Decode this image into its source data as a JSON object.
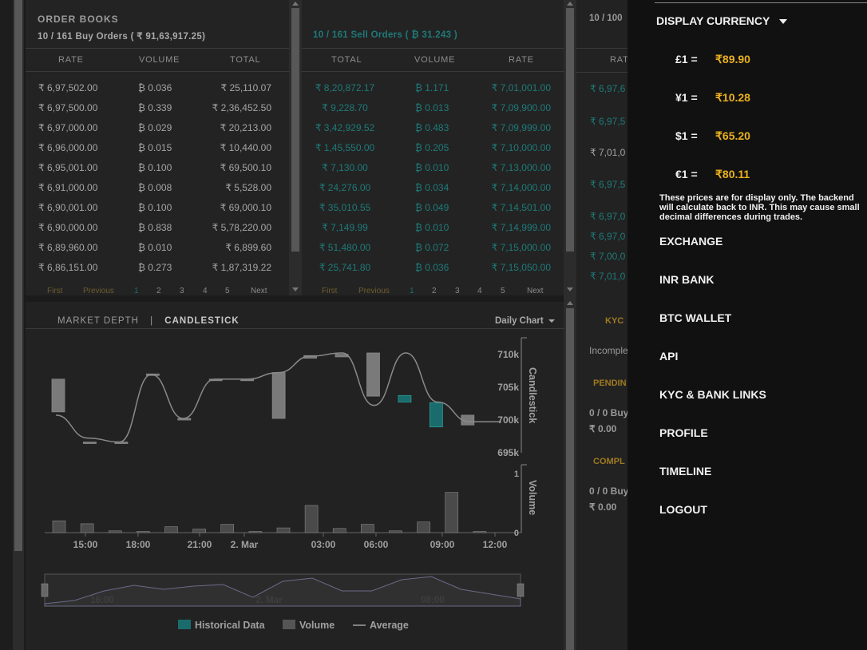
{
  "order_books": {
    "title": "ORDER BOOKS",
    "buy_summary": "10 / 161 Buy Orders ( ₹ 91,63,917.25)",
    "sell_summary": "10 / 161 Sell Orders ( ₿ 31.243 )",
    "buy_headers": [
      "RATE",
      "VOLUME",
      "TOTAL"
    ],
    "sell_headers": [
      "TOTAL",
      "VOLUME",
      "RATE"
    ],
    "buy_rows": [
      [
        "₹ 6,97,502.00",
        "₿ 0.036",
        "₹ 25,110.07"
      ],
      [
        "₹ 6,97,500.00",
        "₿ 0.339",
        "₹ 2,36,452.50"
      ],
      [
        "₹ 6,97,000.00",
        "₿ 0.029",
        "₹ 20,213.00"
      ],
      [
        "₹ 6,96,000.00",
        "₿ 0.015",
        "₹ 10,440.00"
      ],
      [
        "₹ 6,95,001.00",
        "₿ 0.100",
        "₹ 69,500.10"
      ],
      [
        "₹ 6,91,000.00",
        "₿ 0.008",
        "₹ 5,528.00"
      ],
      [
        "₹ 6,90,001.00",
        "₿ 0.100",
        "₹ 69,000.10"
      ],
      [
        "₹ 6,90,000.00",
        "₿ 0.838",
        "₹ 5,78,220.00"
      ],
      [
        "₹ 6,89,960.00",
        "₿ 0.010",
        "₹ 6,899.60"
      ],
      [
        "₹ 6,86,151.00",
        "₿ 0.273",
        "₹ 1,87,319.22"
      ]
    ],
    "sell_rows": [
      [
        "₹ 8,20,872.17",
        "₿ 1.171",
        "₹ 7,01,001.00"
      ],
      [
        "₹ 9,228.70",
        "₿ 0.013",
        "₹ 7,09,900.00"
      ],
      [
        "₹ 3,42,929.52",
        "₿ 0.483",
        "₹ 7,09,999.00"
      ],
      [
        "₹ 1,45,550.00",
        "₿ 0.205",
        "₹ 7,10,000.00"
      ],
      [
        "₹ 7,130.00",
        "₿ 0.010",
        "₹ 7,13,000.00"
      ],
      [
        "₹ 24,276.00",
        "₿ 0.034",
        "₹ 7,14,000.00"
      ],
      [
        "₹ 35,010.55",
        "₿ 0.049",
        "₹ 7,14,501.00"
      ],
      [
        "₹ 7,149.99",
        "₿ 0.010",
        "₹ 7,14,999.00"
      ],
      [
        "₹ 51,480.00",
        "₿ 0.072",
        "₹ 7,15,000.00"
      ],
      [
        "₹ 25,741.80",
        "₿ 0.036",
        "₹ 7,15,050.00"
      ]
    ],
    "pager": {
      "first": "First",
      "previous": "Previous",
      "pages": [
        "1",
        "2",
        "3",
        "4",
        "5"
      ],
      "next": "Next"
    }
  },
  "chart_header": {
    "market_depth": "MARKET DEPTH",
    "separator": "|",
    "candlestick": "CANDLESTICK",
    "daily_chart": "Daily Chart"
  },
  "chart_data": {
    "type": "candlestick",
    "price_axis_label": "Candlestick",
    "volume_axis_label": "Volume",
    "price_ticks": [
      "695k",
      "700k",
      "705k",
      "710k"
    ],
    "price_ylim": [
      695000,
      710000
    ],
    "volume_ticks": [
      "0",
      "1"
    ],
    "volume_ylim": [
      0,
      1.0
    ],
    "x_ticks": [
      "15:00",
      "18:00",
      "21:00",
      "2. Mar",
      "03:00",
      "06:00",
      "09:00",
      "12:00"
    ],
    "navigator_labels": [
      "16:00",
      "2. Mar",
      "08:00"
    ],
    "candles": [
      {
        "o": 701000,
        "c": 706000,
        "up": false
      },
      {
        "o": 696400,
        "c": 696400,
        "up": false
      },
      {
        "o": 696400,
        "c": 696400,
        "up": false
      },
      {
        "o": 706800,
        "c": 706800,
        "up": false
      },
      {
        "o": 700000,
        "c": 700000,
        "up": false
      },
      {
        "o": 706000,
        "c": 706000,
        "up": false
      },
      {
        "o": 706000,
        "c": 706000,
        "up": false
      },
      {
        "o": 700000,
        "c": 707000,
        "up": false
      },
      {
        "o": 709200,
        "c": 709600,
        "up": false
      },
      {
        "o": 709400,
        "c": 709800,
        "up": false
      },
      {
        "o": 703400,
        "c": 710000,
        "up": false
      },
      {
        "o": 702500,
        "c": 703500,
        "up": true
      },
      {
        "o": 698700,
        "c": 702400,
        "up": true
      },
      {
        "o": 699000,
        "c": 700500,
        "up": false
      }
    ],
    "average": [
      700500,
      697000,
      696400,
      706700,
      700000,
      706000,
      706000,
      707000,
      709500,
      710000,
      702000,
      710000,
      702500,
      699500,
      699500
    ],
    "volumes": [
      0.2,
      0.15,
      0.03,
      0.02,
      0.1,
      0.06,
      0.14,
      0.02,
      0.08,
      0.46,
      0.07,
      0.14,
      0.03,
      0.18,
      0.68,
      0.02
    ],
    "legend": [
      "Historical Data",
      "Volume",
      "Average"
    ]
  },
  "right_panel": {
    "summary": "10 / 100",
    "rate_header": "RAT",
    "rates": [
      "₹ 6,97,6",
      "₹ 6,97,5",
      "₹ 7,01,0",
      "₹ 6,97,5",
      "₹ 6,97,0",
      "₹ 6,97,0",
      "₹ 7,00,0",
      "₹ 7,01,0"
    ],
    "kyc": "KYC",
    "kyc_status": "Incomple",
    "pending": "PENDIN",
    "pending_orders": "0 / 0 Buy",
    "pending_amount": "₹ 0.00",
    "completed": "COMPL",
    "completed_orders": "0 / 0 Buy",
    "completed_amount": "₹ 0.00"
  },
  "sidebar": {
    "display_currency": "DISPLAY CURRENCY",
    "rates": [
      {
        "symbol": "£1 =",
        "value": "₹89.90"
      },
      {
        "symbol": "¥1 =",
        "value": "₹10.28"
      },
      {
        "symbol": "$1 =",
        "value": "₹65.20"
      },
      {
        "symbol": "€1 =",
        "value": "₹80.11"
      }
    ],
    "notice": "These prices are for display only. The backend will calculate back to INR. This may cause small decimal differences during trades.",
    "menu": [
      "EXCHANGE",
      "INR BANK",
      "BTC WALLET",
      "API",
      "KYC & BANK LINKS",
      "PROFILE",
      "TIMELINE",
      "LOGOUT"
    ]
  },
  "colors": {
    "accent": "#e9b020",
    "teal": "#1f7a7a",
    "candle_down": "#7a7a7a",
    "candle_up": "#1a6b6b"
  }
}
